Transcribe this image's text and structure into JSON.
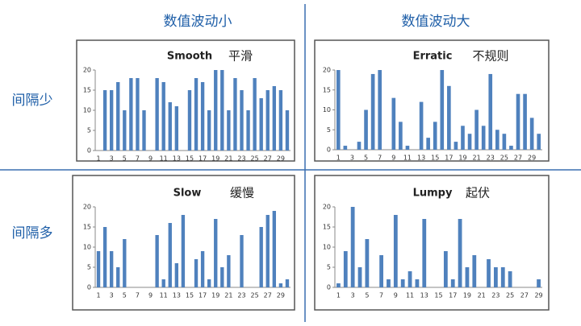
{
  "labels": {
    "col_left": "数值波动小",
    "col_right": "数值波动大",
    "row_top": "间隔少",
    "row_bottom": "间隔多"
  },
  "chart_data": [
    {
      "type": "bar",
      "title": "Smooth",
      "subtitle": "平滑",
      "color": "#4f81bd",
      "grid": false,
      "categories": [
        1,
        null,
        3,
        null,
        5,
        null,
        7,
        null,
        9,
        null,
        11,
        null,
        13,
        null,
        15,
        null,
        17,
        null,
        19,
        null,
        21,
        null,
        23,
        null,
        25,
        null,
        27,
        null,
        29,
        null
      ],
      "values": [
        0,
        15,
        15,
        17,
        10,
        18,
        18,
        10,
        0,
        18,
        17,
        12,
        11,
        0,
        15,
        18,
        17,
        10,
        20,
        20,
        10,
        18,
        15,
        10,
        18,
        13,
        15,
        16,
        15,
        10
      ],
      "ylim": [
        0,
        20
      ],
      "yticks": [
        0,
        5,
        10,
        15,
        20
      ]
    },
    {
      "type": "bar",
      "title": "Erratic",
      "subtitle": "不规则",
      "color": "#4f81bd",
      "grid": false,
      "categories": [
        1,
        null,
        3,
        null,
        5,
        null,
        7,
        null,
        9,
        null,
        11,
        null,
        13,
        null,
        15,
        null,
        17,
        null,
        19,
        null,
        21,
        null,
        23,
        null,
        25,
        null,
        27,
        null,
        29,
        null
      ],
      "values": [
        20,
        1,
        0,
        2,
        10,
        19,
        20,
        0,
        13,
        7,
        1,
        0,
        12,
        3,
        7,
        20,
        16,
        2,
        6,
        4,
        10,
        6,
        19,
        5,
        4,
        1,
        14,
        14,
        8,
        4
      ],
      "ylim": [
        0,
        20
      ],
      "yticks": [
        0,
        5,
        10,
        15,
        20
      ]
    },
    {
      "type": "bar",
      "title": "Slow",
      "subtitle": "缓慢",
      "color": "#4f81bd",
      "grid": false,
      "categories": [
        1,
        null,
        3,
        null,
        5,
        null,
        7,
        null,
        9,
        null,
        11,
        null,
        13,
        null,
        15,
        null,
        17,
        null,
        19,
        null,
        21,
        null,
        23,
        null,
        25,
        null,
        27,
        null,
        29,
        null
      ],
      "values": [
        9,
        15,
        9,
        5,
        12,
        0,
        0,
        0,
        0,
        13,
        2,
        16,
        6,
        18,
        0,
        7,
        9,
        2,
        17,
        5,
        8,
        0,
        13,
        0,
        0,
        15,
        18,
        19,
        1,
        2
      ],
      "ylim": [
        0,
        20
      ],
      "yticks": [
        0,
        5,
        10,
        15,
        20
      ]
    },
    {
      "type": "bar",
      "title": "Lumpy",
      "subtitle": "起伏",
      "color": "#4f81bd",
      "grid": false,
      "categories": [
        1,
        null,
        3,
        null,
        5,
        null,
        7,
        null,
        9,
        null,
        11,
        null,
        13,
        null,
        15,
        null,
        17,
        null,
        19,
        null,
        21,
        null,
        23,
        null,
        25,
        null,
        27,
        null,
        29
      ],
      "values": [
        1,
        9,
        20,
        5,
        12,
        0,
        8,
        2,
        18,
        2,
        4,
        2,
        17,
        0,
        0,
        9,
        2,
        17,
        5,
        8,
        0,
        7,
        5,
        5,
        4,
        0,
        0,
        0,
        2
      ],
      "ylim": [
        0,
        20
      ],
      "yticks": [
        0,
        5,
        10,
        15,
        20
      ]
    }
  ]
}
